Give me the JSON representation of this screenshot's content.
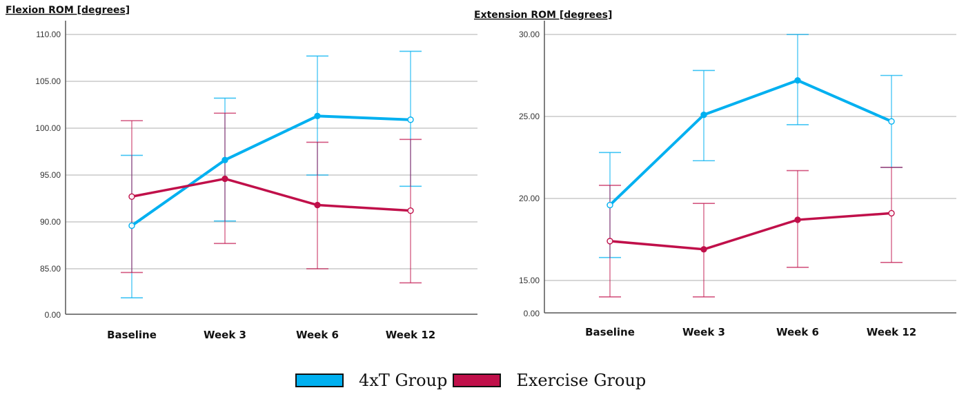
{
  "colors": {
    "group_4xT": "#00b0f0",
    "group_exercise": "#c0104a",
    "grid": "#c8c8c8",
    "axis": "#555555"
  },
  "legend": {
    "items": [
      {
        "label": "4xT Group",
        "color": "#00b0f0"
      },
      {
        "label": "Exercise Group",
        "color": "#c0104a"
      }
    ]
  },
  "chart_data": [
    {
      "type": "line",
      "title": "Flexion ROM [degrees]",
      "xlabel": "",
      "ylabel": "",
      "categories": [
        "Baseline",
        "Week 3",
        "Week 6",
        "Week 12"
      ],
      "yticks": [
        85,
        90,
        95,
        100,
        105,
        110
      ],
      "ytick_labels": [
        "85.00",
        "90.00",
        "95.00",
        "100.00",
        "105.00",
        "110.00"
      ],
      "axis_break_label": "0.00",
      "ylim": [
        80,
        110
      ],
      "grid": true,
      "error_bars": true,
      "series": [
        {
          "name": "4xT Group",
          "values": [
            89.6,
            96.6,
            101.3,
            100.9
          ],
          "upper": [
            97.1,
            103.2,
            107.7,
            108.2
          ],
          "lower": [
            81.9,
            90.1,
            95.0,
            93.8
          ]
        },
        {
          "name": "Exercise Group",
          "values": [
            92.7,
            94.6,
            91.8,
            91.2
          ],
          "upper": [
            100.8,
            101.6,
            98.5,
            98.8
          ],
          "lower": [
            84.6,
            87.7,
            85.0,
            83.5
          ]
        }
      ]
    },
    {
      "type": "line",
      "title": "Extension ROM [degrees]",
      "xlabel": "",
      "ylabel": "",
      "categories": [
        "Baseline",
        "Week 3",
        "Week 6",
        "Week 12"
      ],
      "yticks": [
        15,
        20,
        25,
        30
      ],
      "ytick_labels": [
        "15.00",
        "20.00",
        "25.00",
        "30.00"
      ],
      "axis_break_label": "0.00",
      "ylim": [
        13,
        30
      ],
      "grid": true,
      "error_bars": true,
      "series": [
        {
          "name": "4xT Group",
          "values": [
            19.6,
            25.1,
            27.2,
            24.7
          ],
          "upper": [
            22.8,
            27.8,
            30.0,
            27.5
          ],
          "lower": [
            16.4,
            22.3,
            24.5,
            21.9
          ]
        },
        {
          "name": "Exercise Group",
          "values": [
            17.4,
            16.9,
            18.7,
            19.1
          ],
          "upper": [
            20.8,
            19.7,
            21.7,
            21.9
          ],
          "lower": [
            14.0,
            14.0,
            15.8,
            16.1
          ]
        }
      ]
    }
  ]
}
